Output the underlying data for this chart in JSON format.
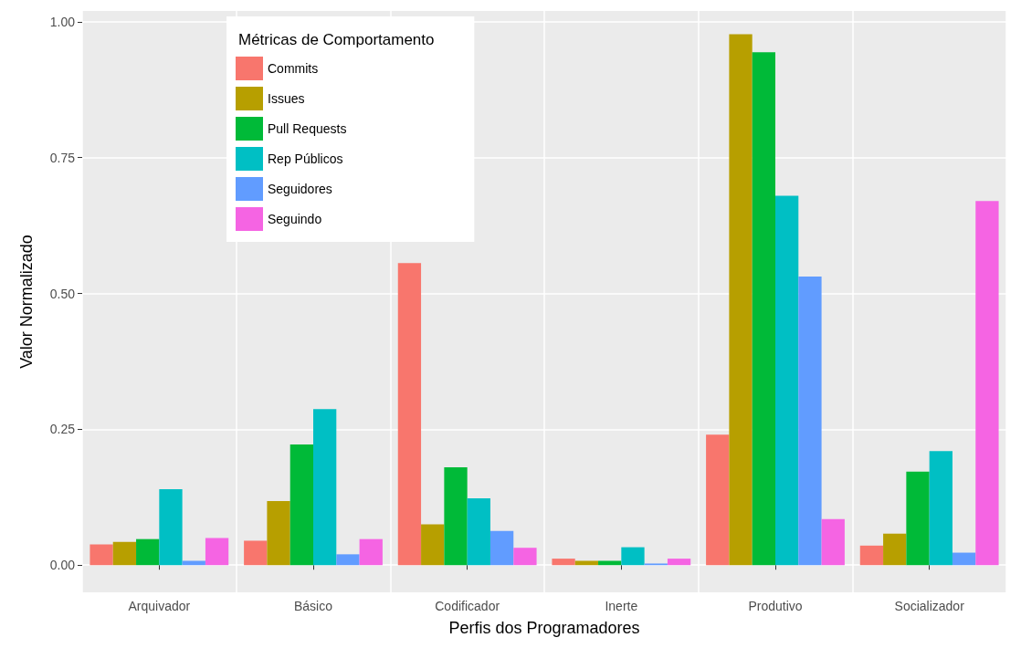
{
  "chart_data": {
    "type": "bar",
    "xlabel": "Perfis dos Programadores",
    "ylabel": "Valor Normalizado",
    "legend_title": "Métricas de Comportamento",
    "legend": "top left",
    "grid": true,
    "categories": [
      "Arquivador",
      "Básico",
      "Codificador",
      "Inerte",
      "Produtivo",
      "Socializador"
    ],
    "ylim": [
      -0.05,
      1.02
    ],
    "yticks": [
      {
        "value": 0,
        "label": "0.00"
      },
      {
        "value": 0.25,
        "label": "0.25"
      },
      {
        "value": 0.5,
        "label": "0.50"
      },
      {
        "value": 0.75,
        "label": "0.75"
      },
      {
        "value": 1,
        "label": "1.00"
      }
    ],
    "series": [
      {
        "name": "Commits",
        "color": "#f8766d",
        "values": [
          0.038,
          0.045,
          0.556,
          0.012,
          0.24,
          0.036
        ]
      },
      {
        "name": "Issues",
        "color": "#b79f00",
        "values": [
          0.043,
          0.118,
          0.075,
          0.008,
          0.977,
          0.058
        ]
      },
      {
        "name": "Pull Requests",
        "color": "#00ba38",
        "values": [
          0.048,
          0.222,
          0.18,
          0.008,
          0.944,
          0.172
        ]
      },
      {
        "name": "Rep Públicos",
        "color": "#00bfc4",
        "values": [
          0.14,
          0.287,
          0.123,
          0.033,
          0.68,
          0.21
        ]
      },
      {
        "name": "Seguidores",
        "color": "#619cff",
        "values": [
          0.008,
          0.02,
          0.063,
          0.003,
          0.531,
          0.023
        ]
      },
      {
        "name": "Seguindo",
        "color": "#f564e3",
        "values": [
          0.05,
          0.048,
          0.032,
          0.012,
          0.085,
          0.67
        ]
      }
    ]
  }
}
